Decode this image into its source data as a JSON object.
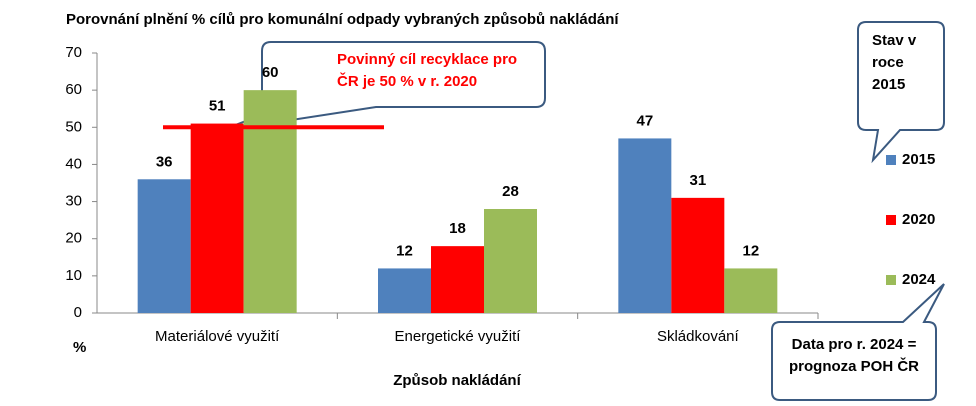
{
  "chart_data": {
    "type": "bar",
    "title": "Porovnání  plnění % cílů pro komunální  odpady vybraných způsobů  nakládání",
    "categories": [
      "Materiálové využití",
      "Energetické  využití",
      "Skládkování"
    ],
    "series": [
      {
        "name": "2015",
        "color": "#4f81bd",
        "values": [
          36,
          12,
          47
        ]
      },
      {
        "name": "2020",
        "color": "#ff0000",
        "values": [
          51,
          18,
          31
        ]
      },
      {
        "name": "2024",
        "color": "#9bbb59",
        "values": [
          60,
          28,
          12
        ]
      }
    ],
    "ylim": [
      0,
      70
    ],
    "yticks": [
      0,
      10,
      20,
      30,
      40,
      50,
      60,
      70
    ],
    "y_label": "%",
    "x_label": "Způsob nakládání",
    "reference_line": {
      "value": 50,
      "color": "#ff0000"
    },
    "legend": "right",
    "grid": false,
    "annotations": [
      {
        "lines": [
          "Povinný cíl recyklace pro",
          "ČR je 50 % v r. 2020"
        ],
        "color": "#ff0000"
      },
      {
        "lines": [
          "Stav v",
          "roce",
          "2015"
        ],
        "color": "#000000"
      },
      {
        "lines": [
          "Data pro r. 2024 =",
          "prognoza POH ČR"
        ],
        "color": "#000000"
      }
    ]
  }
}
